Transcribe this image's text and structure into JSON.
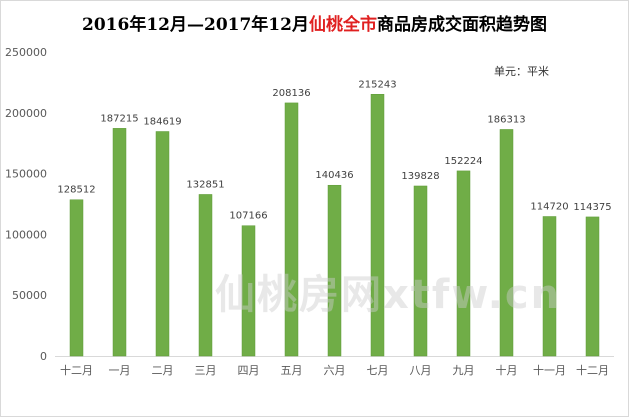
{
  "header": {
    "title_prefix": "2016年12月—2017年12月",
    "title_highlight": "仙桃全市",
    "title_suffix": "商品房成交面积趋势图",
    "unit": "单元：平米"
  },
  "watermark": "仙桃房网xtfw.cn",
  "colors": {
    "bar": "#70ad47",
    "bar_edge": "#5e9a38",
    "title_highlight": "#e02020",
    "grid": "#d9d9d9"
  },
  "chart_data": {
    "type": "bar",
    "title": "2016年12月—2017年12月仙桃全市商品房成交面积趋势图",
    "unit": "单元：平米",
    "categories": [
      "十二月",
      "一月",
      "二月",
      "三月",
      "四月",
      "五月",
      "六月",
      "七月",
      "八月",
      "九月",
      "十月",
      "十一月",
      "十二月"
    ],
    "values": [
      128512,
      187215,
      184619,
      132851,
      107166,
      208136,
      140436,
      215243,
      139828,
      152224,
      186313,
      114720,
      114375
    ],
    "value_labels": [
      "128512",
      "187215",
      "184619",
      "132851",
      "107166",
      "208136",
      "140436",
      "215243",
      "139828",
      "152224",
      "186313",
      "114720",
      "114375"
    ],
    "yticks": [
      0,
      50000,
      100000,
      150000,
      200000,
      250000
    ],
    "ytick_labels": [
      "0",
      "50000",
      "100000",
      "150000",
      "200000",
      "250000"
    ],
    "ylim": [
      0,
      250000
    ],
    "grid": false,
    "legend": "none"
  }
}
